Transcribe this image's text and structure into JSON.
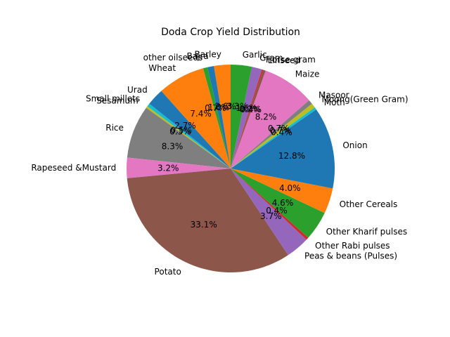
{
  "chart_data": {
    "type": "pie",
    "title": "Doda Crop Yield Distribution",
    "start_angle_deg": 90,
    "direction": "counterclockwise",
    "slices": [
      {
        "label": "Barley",
        "value": 2.6,
        "pct_text": "2.6%",
        "color": "#ff7f0e"
      },
      {
        "label": "Bajra",
        "value": 1.0,
        "pct_text": "1.0%",
        "color": "#1f77b4"
      },
      {
        "label": "other oilseeds",
        "value": 0.7,
        "pct_text": "0.7%",
        "color": "#2ca02c"
      },
      {
        "label": "Wheat",
        "value": 7.4,
        "pct_text": "7.4%",
        "color": "#ff7f0e"
      },
      {
        "label": "Urad",
        "value": 2.7,
        "pct_text": "2.7%",
        "color": "#1f77b4"
      },
      {
        "label": "Small millets",
        "value": 0.5,
        "pct_text": "0.5%",
        "color": "#17becf"
      },
      {
        "label": "Sesamum",
        "value": 0.3,
        "pct_text": "0.3%",
        "color": "#bcbd22"
      },
      {
        "label": "Rice",
        "value": 8.3,
        "pct_text": "8.3%",
        "color": "#7f7f7f"
      },
      {
        "label": "Rapeseed &Mustard",
        "value": 3.2,
        "pct_text": "3.2%",
        "color": "#e377c2"
      },
      {
        "label": "Potato",
        "value": 33.1,
        "pct_text": "33.1%",
        "color": "#8c564b"
      },
      {
        "label": "Peas & beans (Pulses)",
        "value": 3.7,
        "pct_text": "3.7%",
        "color": "#9467bd"
      },
      {
        "label": "Other Rabi pulses",
        "value": 0.4,
        "pct_text": "0.4%",
        "color": "#d62728"
      },
      {
        "label": "Other Kharif pulses",
        "value": 4.6,
        "pct_text": "4.6%",
        "color": "#2ca02c"
      },
      {
        "label": "Other Cereals",
        "value": 4.0,
        "pct_text": "4.0%",
        "color": "#ff7f0e"
      },
      {
        "label": "Onion",
        "value": 12.8,
        "pct_text": "12.8%",
        "color": "#1f77b4"
      },
      {
        "label": "Moth",
        "value": 0.4,
        "pct_text": "0.4%",
        "color": "#17becf"
      },
      {
        "label": "Moong(Green Gram)",
        "value": 0.7,
        "pct_text": "0.7%",
        "color": "#bcbd22"
      },
      {
        "label": "Masoor",
        "value": 0.7,
        "pct_text": "0.7%",
        "color": "#7f7f7f"
      },
      {
        "label": "Maize",
        "value": 8.2,
        "pct_text": "8.2%",
        "color": "#e377c2"
      },
      {
        "label": "Linseed",
        "value": 0.4,
        "pct_text": "0.4%",
        "color": "#8c564b"
      },
      {
        "label": "Horse-gram",
        "value": 0.2,
        "pct_text": "0.2%",
        "color": "#d62728"
      },
      {
        "label": "Gram",
        "value": 1.6,
        "pct_text": "1.6%",
        "color": "#9467bd"
      },
      {
        "label": "Garlic",
        "value": 3.3,
        "pct_text": "3.3%",
        "color": "#2ca02c"
      }
    ]
  }
}
